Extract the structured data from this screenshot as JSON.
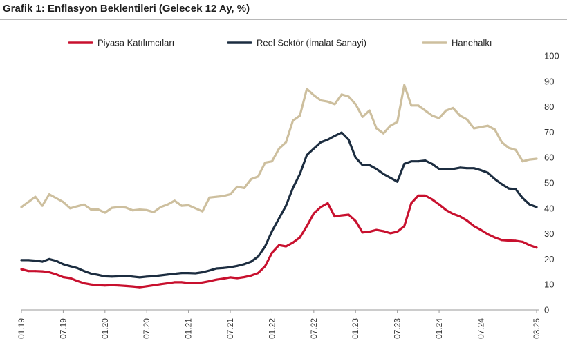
{
  "title": "Grafik 1: Enflasyon Beklentileri (Gelecek 12 Ay, %)",
  "chart_data": {
    "type": "line",
    "title": "Grafik 1: Enflasyon Beklentileri (Gelecek 12 Ay, %)",
    "xlabel": "",
    "ylabel": "",
    "ylim": [
      0,
      100
    ],
    "yticks": [
      0,
      10,
      20,
      30,
      40,
      50,
      60,
      70,
      80,
      90,
      100
    ],
    "grid": false,
    "legend_position": "top",
    "x_tick_labels": [
      "01.19",
      "07.19",
      "01.20",
      "07.20",
      "01.21",
      "07.21",
      "01.22",
      "07.22",
      "01.23",
      "07.23",
      "01.24",
      "07.24",
      "03.25"
    ],
    "x_tick_index": [
      0,
      6,
      12,
      18,
      24,
      30,
      36,
      42,
      48,
      54,
      60,
      66,
      74
    ],
    "series": [
      {
        "name": "Piyasa Katılımcıları",
        "color": "#c8102e",
        "values": [
          16,
          15.3,
          15.3,
          15.2,
          14.8,
          14.0,
          12.9,
          12.5,
          11.4,
          10.5,
          10.0,
          9.7,
          9.6,
          9.7,
          9.6,
          9.4,
          9.2,
          8.9,
          9.3,
          9.7,
          10.1,
          10.5,
          10.9,
          10.9,
          10.6,
          10.6,
          10.8,
          11.3,
          11.9,
          12.3,
          12.8,
          12.5,
          12.9,
          13.5,
          14.5,
          17.2,
          22.5,
          25.5,
          25.0,
          26.5,
          28.5,
          33.0,
          38.0,
          40.5,
          42.0,
          36.8,
          37.2,
          37.5,
          35.0,
          30.5,
          30.8,
          31.5,
          31.0,
          30.2,
          30.8,
          33.0,
          42.0,
          45.0,
          45.0,
          43.5,
          41.5,
          39.3,
          37.8,
          36.8,
          35.2,
          33.0,
          31.5,
          29.8,
          28.5,
          27.5,
          27.3,
          27.2,
          26.8,
          25.5,
          24.5
        ]
      },
      {
        "name": "Reel Sektör (İmalat Sanayi)",
        "color": "#1c2d40",
        "values": [
          19.6,
          19.6,
          19.4,
          19.0,
          20.0,
          19.3,
          18.0,
          17.2,
          16.5,
          15.3,
          14.3,
          13.8,
          13.2,
          13.1,
          13.2,
          13.4,
          13.1,
          12.8,
          13.1,
          13.3,
          13.6,
          13.9,
          14.2,
          14.5,
          14.5,
          14.4,
          14.8,
          15.5,
          16.3,
          16.5,
          16.8,
          17.3,
          18.0,
          19.0,
          21.0,
          25.0,
          31.0,
          36.0,
          41.0,
          48.0,
          53.5,
          61.0,
          63.5,
          66.0,
          67.0,
          68.5,
          69.8,
          67.0,
          60.0,
          57.0,
          57.0,
          55.5,
          53.5,
          52.0,
          50.5,
          57.5,
          58.5,
          58.5,
          58.8,
          57.5,
          55.5,
          55.5,
          55.5,
          56.0,
          55.8,
          55.8,
          55.0,
          54.0,
          51.5,
          49.5,
          47.8,
          47.5,
          44.0,
          41.5,
          40.5
        ]
      },
      {
        "name": "Hanehalkı",
        "color": "#cdbf9e",
        "values": [
          40.5,
          42.5,
          44.5,
          41.0,
          45.5,
          44.0,
          42.5,
          40.0,
          40.8,
          41.5,
          39.5,
          39.6,
          38.3,
          40.2,
          40.5,
          40.3,
          39.2,
          39.5,
          39.3,
          38.5,
          40.5,
          41.5,
          43.0,
          41.0,
          41.2,
          40.0,
          38.8,
          44.2,
          44.5,
          44.8,
          45.5,
          48.5,
          48.0,
          51.5,
          52.5,
          58.0,
          58.5,
          63.5,
          66.0,
          74.5,
          76.5,
          87.0,
          84.5,
          82.5,
          82.0,
          81.0,
          84.8,
          84.0,
          81.0,
          76.0,
          78.5,
          71.5,
          69.5,
          72.5,
          74.0,
          88.5,
          80.5,
          80.5,
          78.5,
          76.5,
          75.5,
          78.5,
          79.5,
          76.5,
          75.0,
          71.5,
          72.0,
          72.5,
          71.0,
          66.0,
          63.8,
          63.0,
          58.5,
          59.2,
          59.5
        ]
      }
    ]
  }
}
